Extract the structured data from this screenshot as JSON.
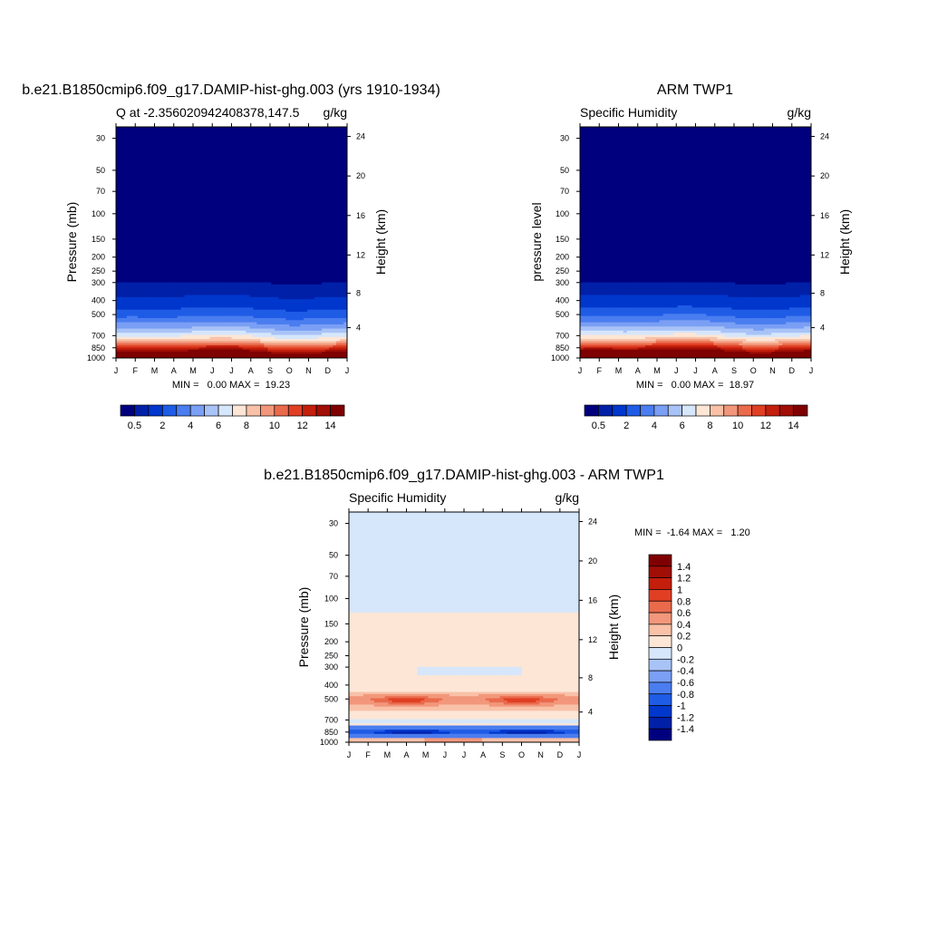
{
  "figure": {
    "panels": [
      {
        "title": "b.e21.B1850cmip6.f09_g17.DAMIP-hist-ghg.003 (yrs 1910-1934)",
        "left_label": "Q at -2.356020942408378,147.5",
        "right_label": "g/kg",
        "ylabel": "Pressure (mb)",
        "y2label": "Height (km)",
        "minmax": "MIN =   0.00 MAX =  19.23"
      },
      {
        "title": "ARM TWP1",
        "left_label": "Specific Humidity",
        "right_label": "g/kg",
        "ylabel": "pressure level",
        "y2label": "Height (km)",
        "minmax": "MIN =   0.00 MAX =  18.97"
      },
      {
        "title": "b.e21.B1850cmip6.f09_g17.DAMIP-hist-ghg.003 - ARM TWP1",
        "left_label": "Specific Humidity",
        "right_label": "g/kg",
        "ylabel": "Pressure (mb)",
        "y2label": "Height (km)",
        "minmax": "MIN =  -1.64 MAX =   1.20"
      }
    ]
  },
  "chart_data": [
    {
      "type": "heatmap",
      "title": "b.e21.B1850cmip6.f09_g17.DAMIP-hist-ghg.003 (yrs 1910-1934)",
      "subtitle_left": "Q at -2.356020942408378,147.5",
      "units": "g/kg",
      "xlabel": "",
      "ylabel": "Pressure (mb)",
      "y2label": "Height (km)",
      "x_tick_labels": [
        "J",
        "F",
        "M",
        "A",
        "M",
        "J",
        "J",
        "A",
        "S",
        "O",
        "N",
        "D",
        "J"
      ],
      "y_ticks": [
        30,
        50,
        70,
        100,
        150,
        200,
        250,
        300,
        400,
        500,
        700,
        850,
        1000
      ],
      "y_scale": "log",
      "ylim": [
        1000,
        25
      ],
      "y2_ticks": [
        4,
        8,
        12,
        16,
        20,
        24
      ],
      "colorbar_labels": [
        "0.5",
        "2",
        "4",
        "6",
        "8",
        "10",
        "12",
        "14"
      ],
      "levels": [
        0.5,
        1,
        2,
        3,
        4,
        5,
        6,
        7,
        8,
        9,
        10,
        11,
        12,
        13,
        14
      ],
      "colors": [
        "#00007f",
        "#0020a8",
        "#0037cc",
        "#1f5ce6",
        "#4a7df0",
        "#7a9ff4",
        "#a8c3f7",
        "#d6e6fb",
        "#fde6d6",
        "#f8c1a8",
        "#f2977b",
        "#ea6a4c",
        "#e03f24",
        "#c41e0c",
        "#a00e06",
        "#7f0000"
      ],
      "profile_pressure": [
        1000,
        925,
        850,
        800,
        750,
        700,
        650,
        600,
        550,
        500,
        450,
        400,
        350,
        300,
        250
      ],
      "profile_values": [
        18.6,
        15.0,
        12.0,
        10.0,
        8.0,
        6.8,
        5.6,
        4.5,
        3.5,
        2.6,
        1.9,
        1.2,
        0.8,
        0.5,
        0.1
      ],
      "minmax": "MIN =   0.00 MAX =  19.23"
    },
    {
      "type": "heatmap",
      "title": "ARM TWP1",
      "subtitle_left": "Specific Humidity",
      "units": "g/kg",
      "xlabel": "",
      "ylabel": "pressure level",
      "y2label": "Height (km)",
      "x_tick_labels": [
        "J",
        "F",
        "M",
        "A",
        "M",
        "J",
        "J",
        "A",
        "S",
        "O",
        "N",
        "D",
        "J"
      ],
      "y_ticks": [
        30,
        50,
        70,
        100,
        150,
        200,
        250,
        300,
        400,
        500,
        700,
        850,
        1000
      ],
      "y_scale": "log",
      "ylim": [
        1000,
        25
      ],
      "y2_ticks": [
        4,
        8,
        12,
        16,
        20,
        24
      ],
      "colorbar_labels": [
        "0.5",
        "2",
        "4",
        "6",
        "8",
        "10",
        "12",
        "14"
      ],
      "levels": [
        0.5,
        1,
        2,
        3,
        4,
        5,
        6,
        7,
        8,
        9,
        10,
        11,
        12,
        13,
        14
      ],
      "colors": [
        "#00007f",
        "#0020a8",
        "#0037cc",
        "#1f5ce6",
        "#4a7df0",
        "#7a9ff4",
        "#a8c3f7",
        "#d6e6fb",
        "#fde6d6",
        "#f8c1a8",
        "#f2977b",
        "#ea6a4c",
        "#e03f24",
        "#c41e0c",
        "#a00e06",
        "#7f0000"
      ],
      "profile_pressure": [
        1000,
        925,
        850,
        800,
        750,
        700,
        650,
        600,
        550,
        500,
        450,
        400,
        350,
        300,
        250
      ],
      "profile_values": [
        18.4,
        15.5,
        12.5,
        10.5,
        8.6,
        7.0,
        5.8,
        4.7,
        3.7,
        2.8,
        2.0,
        1.3,
        0.8,
        0.5,
        0.1
      ],
      "minmax": "MIN =   0.00 MAX =  18.97"
    },
    {
      "type": "heatmap",
      "title": "b.e21.B1850cmip6.f09_g17.DAMIP-hist-ghg.003 - ARM TWP1",
      "subtitle_left": "Specific Humidity",
      "units": "g/kg",
      "xlabel": "",
      "ylabel": "Pressure (mb)",
      "y2label": "Height (km)",
      "x_tick_labels": [
        "J",
        "F",
        "M",
        "A",
        "M",
        "J",
        "J",
        "A",
        "S",
        "O",
        "N",
        "D",
        "J"
      ],
      "y_ticks": [
        30,
        50,
        70,
        100,
        150,
        200,
        250,
        300,
        400,
        500,
        700,
        850,
        1000
      ],
      "y_scale": "log",
      "ylim": [
        1000,
        25
      ],
      "y2_ticks": [
        4,
        8,
        12,
        16,
        20,
        24
      ],
      "colorbar_labels": [
        "1.4",
        "1.2",
        "1",
        "0.8",
        "0.6",
        "0.4",
        "0.2",
        "0",
        "-0.2",
        "-0.4",
        "-0.6",
        "-0.8",
        "-1",
        "-1.2",
        "-1.4"
      ],
      "levels": [
        -1.4,
        -1.2,
        -1,
        -0.8,
        -0.6,
        -0.4,
        -0.2,
        0,
        0.2,
        0.4,
        0.6,
        0.8,
        1,
        1.2,
        1.4
      ],
      "colors": [
        "#00007f",
        "#0020a8",
        "#0037cc",
        "#1f5ce6",
        "#4a7df0",
        "#7a9ff4",
        "#a8c3f7",
        "#d6e6fb",
        "#fde6d6",
        "#f8c1a8",
        "#f2977b",
        "#ea6a4c",
        "#e03f24",
        "#c41e0c",
        "#a00e06",
        "#7f0000"
      ],
      "minmax": "MIN =  -1.64 MAX =   1.20"
    }
  ]
}
